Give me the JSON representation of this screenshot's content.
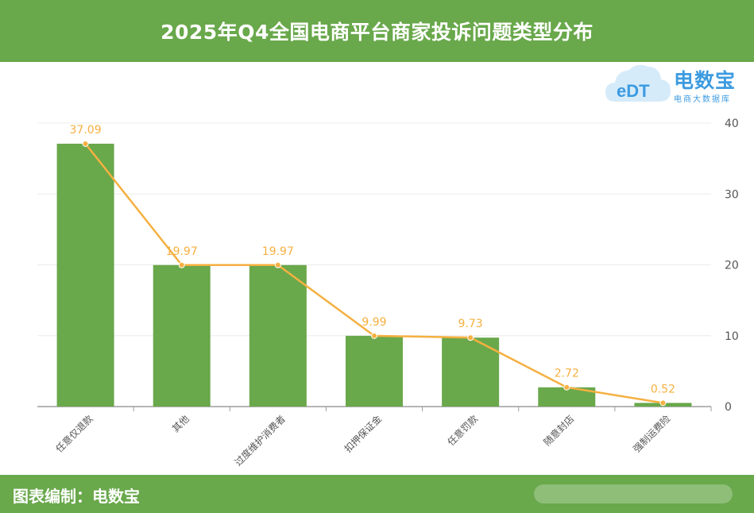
{
  "header": {
    "title": "2025年Q4全国电商平台商家投诉问题类型分布"
  },
  "footer": {
    "credit": "图表编制：电数宝"
  },
  "logo": {
    "brand": "电数宝",
    "subtitle": "电商大数据库",
    "badge": "eDT"
  },
  "colors": {
    "bar": "#69a84b",
    "line": "#f5b041",
    "label": "#f5b041",
    "header": "#69a84b"
  },
  "chart_data": {
    "type": "bar",
    "categories": [
      "任意仅退款",
      "其他",
      "过度维护消费者",
      "扣押保证金",
      "任意罚款",
      "随意封店",
      "强制运费险"
    ],
    "series": [
      {
        "type": "bar",
        "values": [
          37.09,
          19.97,
          19.97,
          9.99,
          9.73,
          2.72,
          0.52
        ]
      },
      {
        "type": "line",
        "values": [
          37.09,
          19.97,
          19.97,
          9.99,
          9.73,
          2.72,
          0.52
        ]
      }
    ],
    "data_labels": [
      "37.09",
      "19.97",
      "19.97",
      "9.99",
      "9.73",
      "2.72",
      "0.52"
    ],
    "y_ticks": [
      0,
      10,
      20,
      30,
      40
    ],
    "ylim": [
      0,
      40
    ],
    "y_axis_position": "right",
    "grid": true
  }
}
